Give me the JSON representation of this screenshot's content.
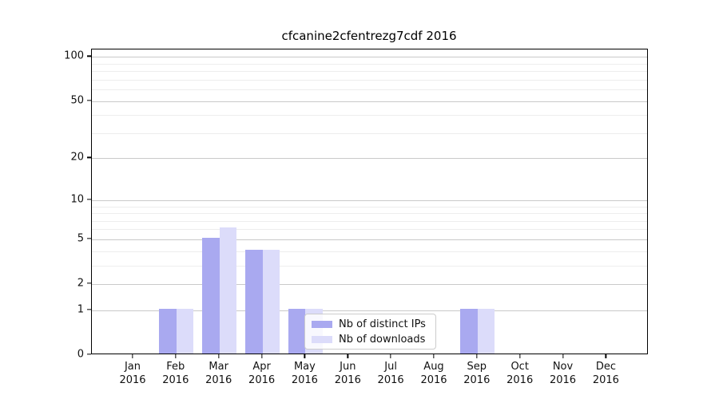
{
  "title": "cfcanine2cfentrezg7cdf 2016",
  "chart_data": {
    "type": "bar",
    "title": "cfcanine2cfentrezg7cdf 2016",
    "categories": [
      {
        "month": "Jan",
        "year": "2016"
      },
      {
        "month": "Feb",
        "year": "2016"
      },
      {
        "month": "Mar",
        "year": "2016"
      },
      {
        "month": "Apr",
        "year": "2016"
      },
      {
        "month": "May",
        "year": "2016"
      },
      {
        "month": "Jun",
        "year": "2016"
      },
      {
        "month": "Jul",
        "year": "2016"
      },
      {
        "month": "Aug",
        "year": "2016"
      },
      {
        "month": "Sep",
        "year": "2016"
      },
      {
        "month": "Oct",
        "year": "2016"
      },
      {
        "month": "Nov",
        "year": "2016"
      },
      {
        "month": "Dec",
        "year": "2016"
      }
    ],
    "series": [
      {
        "name": "Nb of distinct IPs",
        "color": "#a9a9f0",
        "values": [
          0,
          1,
          5,
          4,
          1,
          0,
          0,
          0,
          1,
          0,
          0,
          0
        ]
      },
      {
        "name": "Nb of downloads",
        "color": "#dcdcfa",
        "values": [
          0,
          1,
          6,
          4,
          1,
          0,
          0,
          0,
          1,
          0,
          0,
          0
        ]
      }
    ],
    "yscale": "log1p",
    "ylim": [
      0,
      112
    ],
    "y_major_ticks": [
      0,
      1,
      2,
      5,
      10,
      20,
      50,
      100
    ],
    "y_minor_ticks": [
      3,
      4,
      6,
      7,
      8,
      9,
      30,
      40,
      60,
      70,
      80,
      90
    ],
    "grid": "horizontal",
    "legend_position": "lower-center-inside"
  },
  "colors": {
    "major_grid": "#c9c9c9",
    "minor_grid": "#ededed",
    "spine": "#000000",
    "legend_border": "#cccccc"
  }
}
